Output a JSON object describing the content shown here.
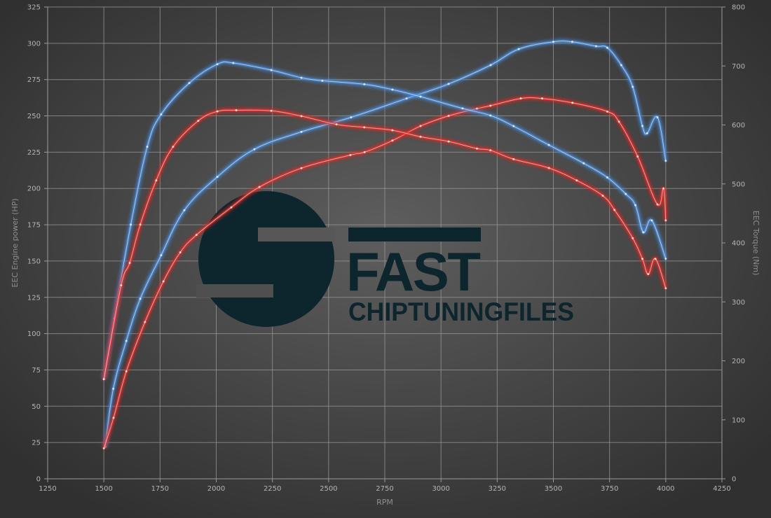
{
  "chart_data": {
    "type": "line",
    "title": "",
    "xlabel": "RPM",
    "ylabel": "EEC Engine power (HP)",
    "y2label": "EEC Torque (Nm)",
    "xlim": [
      1250,
      4250
    ],
    "ylim": [
      0,
      325
    ],
    "y2lim": [
      0,
      800
    ],
    "xticks": [
      1250,
      1500,
      1750,
      2000,
      2250,
      2500,
      2750,
      3000,
      3250,
      3500,
      3750,
      4000,
      4250
    ],
    "yticks": [
      0,
      25,
      50,
      75,
      100,
      125,
      150,
      175,
      200,
      225,
      250,
      275,
      300,
      325
    ],
    "y2ticks": [
      0,
      100,
      200,
      300,
      400,
      500,
      600,
      700,
      800
    ],
    "grid": true,
    "colors": {
      "tuned": "#4a90e2",
      "stock": "#e8302a",
      "background": "#4a4a4a",
      "grid": "#9a9a9a"
    },
    "series": [
      {
        "id": "tuned-power",
        "axis": "left",
        "color": "#4a90e2",
        "x": [
          1506,
          1542,
          1600,
          1662,
          1755,
          1858,
          2005,
          2170,
          2379,
          2600,
          2847,
          3034,
          3221,
          3346,
          3500,
          3584,
          3690,
          3740,
          3802,
          3853,
          3896,
          3917,
          3963,
          4000
        ],
        "y": [
          22,
          62,
          95,
          124,
          154,
          185,
          208,
          227,
          239,
          249,
          262,
          272,
          285,
          296,
          301,
          301,
          298,
          297,
          285,
          270,
          243,
          238,
          249,
          219
        ]
      },
      {
        "id": "stock-power",
        "axis": "left",
        "color": "#e8302a",
        "x": [
          1500,
          1543,
          1600,
          1683,
          1765,
          1840,
          1912,
          2067,
          2192,
          2379,
          2597,
          2660,
          2784,
          2909,
          3034,
          3160,
          3220,
          3355,
          3450,
          3585,
          3740,
          3792,
          3875,
          3963,
          3990,
          4000
        ],
        "y": [
          21,
          42,
          74,
          108,
          136,
          156,
          168,
          187,
          201,
          214,
          223,
          225,
          233,
          243,
          250,
          255,
          257,
          262,
          262,
          259,
          253,
          246,
          222,
          189,
          200,
          178
        ]
      },
      {
        "id": "tuned-torque",
        "axis": "right",
        "color": "#4a90e2",
        "x": [
          1500,
          1546,
          1620,
          1693,
          1755,
          1880,
          2005,
          2076,
          2245,
          2379,
          2472,
          2659,
          2784,
          2909,
          3096,
          3220,
          3323,
          3480,
          3635,
          3740,
          3822,
          3865,
          3900,
          3938,
          4000
        ],
        "y": [
          169,
          272,
          431,
          563,
          618,
          671,
          703,
          705,
          693,
          680,
          675,
          669,
          660,
          648,
          628,
          616,
          598,
          566,
          535,
          511,
          483,
          464,
          418,
          438,
          373
        ]
      },
      {
        "id": "stock-torque",
        "axis": "right",
        "color": "#e8302a",
        "x": [
          1500,
          1577,
          1615,
          1662,
          1733,
          1808,
          1920,
          2005,
          2089,
          2245,
          2379,
          2535,
          2659,
          2784,
          2909,
          3034,
          3160,
          3220,
          3323,
          3480,
          3604,
          3720,
          3772,
          3853,
          3896,
          3922,
          3954,
          4000
        ],
        "y": [
          169,
          328,
          366,
          431,
          506,
          563,
          607,
          623,
          625,
          624,
          615,
          601,
          596,
          591,
          580,
          572,
          560,
          557,
          542,
          527,
          506,
          480,
          456,
          408,
          373,
          347,
          373,
          323
        ]
      }
    ]
  },
  "logo": {
    "line1": "FAST",
    "line2": "CHIPTUNINGFILES"
  }
}
